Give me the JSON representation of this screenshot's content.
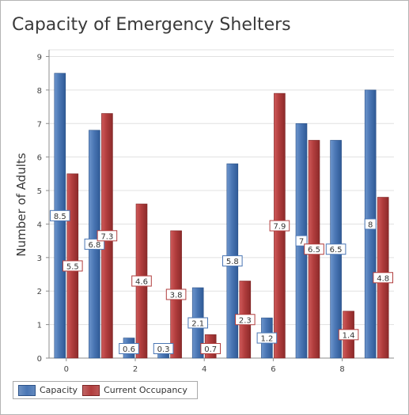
{
  "chart_data": {
    "type": "bar",
    "title": "Capacity of Emergency Shelters",
    "xlabel": "",
    "ylabel": "Number of Adults",
    "x": [
      0,
      1,
      2,
      3,
      4,
      5,
      6,
      7,
      8,
      9
    ],
    "x_ticks": [
      0,
      2,
      4,
      6,
      8
    ],
    "xlim": [
      -0.5,
      9.5
    ],
    "ylim": [
      0,
      9.2
    ],
    "y_ticks": [
      0,
      1,
      2,
      3,
      4,
      5,
      6,
      7,
      8,
      9
    ],
    "grid": true,
    "legend_position": "bottom-left",
    "series": [
      {
        "name": "Capacity",
        "color": "#4a76b4",
        "values": [
          8.5,
          6.8,
          0.6,
          0.3,
          2.1,
          5.8,
          1.2,
          7,
          6.5,
          8
        ]
      },
      {
        "name": "Current Occupancy",
        "color": "#b13d3d",
        "values": [
          5.5,
          7.3,
          4.6,
          3.8,
          0.7,
          2.3,
          7.9,
          6.5,
          1.4,
          4.8
        ]
      }
    ]
  }
}
